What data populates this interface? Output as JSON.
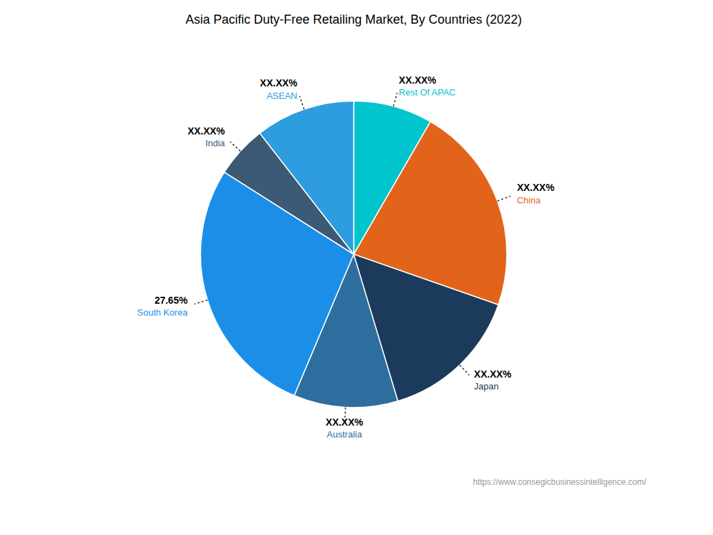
{
  "chart_data": {
    "type": "pie",
    "title": "Asia Pacific Duty-Free Retailing Market, By Countries (2022)",
    "categories": [
      "Rest Of APAC",
      "China",
      "Japan",
      "Australia",
      "South Korea",
      "India",
      "ASEAN"
    ],
    "values": [
      8.35,
      22.0,
      15.0,
      11.0,
      27.65,
      5.5,
      10.5
    ],
    "value_labels": [
      "XX.XX%",
      "XX.XX%",
      "XX.XX%",
      "XX.XX%",
      "27.65%",
      "XX.XX%",
      "XX.XX%"
    ],
    "colors": [
      "#00C5CD",
      "#E2641A",
      "#1B3A5C",
      "#2E6E9E",
      "#1B8FE8",
      "#3C5A75",
      "#2D9DE0"
    ],
    "data_labels": true,
    "annotations": [
      "https://www.consegicbusinessintelligence.com/"
    ]
  }
}
